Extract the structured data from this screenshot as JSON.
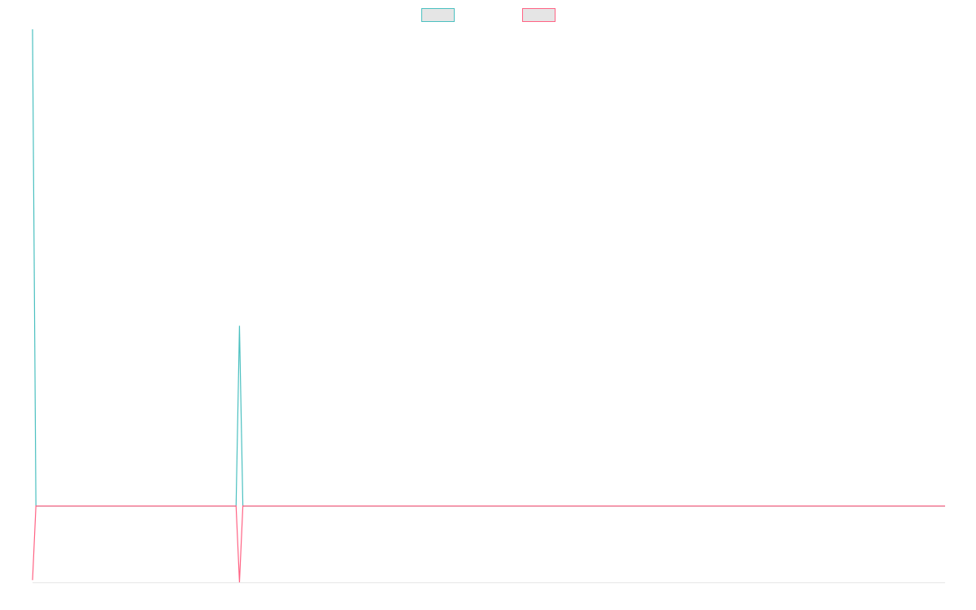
{
  "chart_data": {
    "type": "line",
    "title": "",
    "xlabel": "",
    "ylabel": "",
    "legend_position": "top-center",
    "grid": false,
    "x": [
      0,
      1,
      2,
      3,
      4,
      5,
      6,
      7,
      8,
      9,
      10,
      11,
      12,
      13,
      14,
      15,
      16,
      17,
      18,
      19,
      20,
      21,
      22,
      23,
      24,
      25,
      26,
      27,
      28,
      29,
      30,
      31,
      32,
      33,
      34,
      35,
      36,
      37,
      38,
      39,
      40,
      41,
      42,
      43,
      44,
      45,
      46,
      47,
      48,
      49,
      50,
      51,
      52,
      53,
      54,
      55,
      56,
      57,
      58,
      59,
      60,
      61,
      62,
      63,
      64,
      65,
      66,
      67,
      68,
      69,
      70,
      71,
      72,
      73,
      74,
      75,
      76,
      77,
      78,
      79,
      80,
      81,
      82,
      83,
      84,
      85,
      86,
      87,
      88,
      89,
      90,
      91,
      92,
      93,
      94,
      95,
      96,
      97,
      98,
      99,
      100,
      101,
      102,
      103,
      104,
      105,
      106,
      107,
      108,
      109,
      110,
      111,
      112,
      113,
      114,
      115,
      116,
      117,
      118,
      119,
      120,
      121,
      122,
      123,
      124,
      125,
      126,
      127,
      128,
      129,
      130,
      131,
      132,
      133,
      134,
      135,
      136,
      137,
      138,
      139,
      140,
      141,
      142,
      143,
      144,
      145,
      146,
      147,
      148,
      149,
      150,
      151,
      152,
      153,
      154,
      155,
      156,
      157,
      158,
      159,
      160,
      161,
      162,
      163,
      164,
      165,
      166,
      167,
      168,
      169,
      170,
      171,
      172,
      173,
      174,
      175,
      176,
      177,
      178,
      179,
      180,
      181,
      182,
      183,
      184,
      185,
      186,
      187,
      188,
      189,
      190,
      191,
      192,
      193,
      194,
      195,
      196,
      197,
      198,
      199,
      200,
      201,
      202,
      203,
      204,
      205,
      206,
      207,
      208,
      209,
      210,
      211,
      212,
      213,
      214,
      215,
      216,
      217,
      218,
      219,
      220,
      221,
      222,
      223,
      224,
      225,
      226,
      227,
      228,
      229,
      230,
      231,
      232,
      233,
      234,
      235,
      236,
      237,
      238,
      239,
      240,
      241,
      242,
      243,
      244,
      245,
      246,
      247,
      248,
      249,
      250,
      251,
      252,
      253,
      254,
      255,
      256,
      257,
      258,
      259,
      260,
      261,
      262,
      263,
      264,
      265,
      266,
      267,
      268,
      269
    ],
    "ylim": [
      0,
      1
    ],
    "series": [
      {
        "color": "#4bc0c0",
        "fill": "#e5e5e5",
        "points": [
          [
            0,
            1.0
          ],
          [
            1,
            0.138
          ],
          [
            60,
            0.138
          ],
          [
            61,
            0.464
          ],
          [
            62,
            0.138
          ],
          [
            269,
            0.138
          ]
        ]
      },
      {
        "color": "#ff6384",
        "fill": "#e5e5e5",
        "points": [
          [
            0,
            0.004
          ],
          [
            1,
            0.138
          ],
          [
            60,
            0.138
          ],
          [
            61,
            0.0
          ],
          [
            62,
            0.138
          ],
          [
            269,
            0.138
          ]
        ]
      }
    ]
  }
}
